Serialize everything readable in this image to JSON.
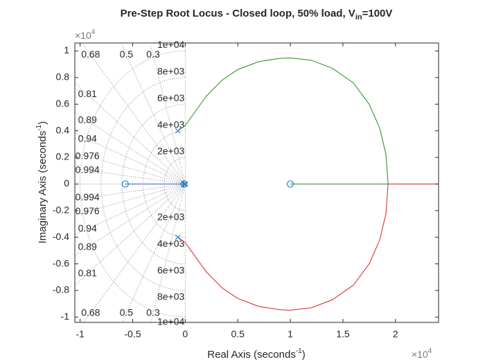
{
  "chart_data": {
    "type": "root-locus",
    "title": {
      "main": "Pre-Step Root Locus - Closed loop, 50% load, V",
      "sub": "in",
      "tail": "=100V"
    },
    "xlabel": {
      "main": "Real Axis (seconds",
      "sup": "-1",
      "tail": ")"
    },
    "ylabel": {
      "main": "Imaginary Axis (seconds",
      "sup": "-1",
      "tail": ")"
    },
    "x_exponent": {
      "base": "×10",
      "power": "4"
    },
    "y_exponent": {
      "base": "×10",
      "power": "4"
    },
    "xlim": [
      -1.05,
      2.41
    ],
    "ylim": [
      -1.04,
      1.06
    ],
    "xticks": [
      -1,
      -0.5,
      0,
      0.5,
      1,
      1.5,
      2
    ],
    "yticks": [
      -1,
      -0.8,
      -0.6,
      -0.4,
      -0.2,
      0,
      0.2,
      0.4,
      0.6,
      0.8,
      1
    ],
    "damping": [
      0.994,
      0.976,
      0.94,
      0.89,
      0.81,
      0.68,
      0.5,
      0.3
    ],
    "frequencies": [
      {
        "value": 0.2,
        "label": "2e+03"
      },
      {
        "value": 0.4,
        "label": "4e+03"
      },
      {
        "value": 0.6,
        "label": "6e+03"
      },
      {
        "value": 0.8,
        "label": "8e+03"
      },
      {
        "value": 1,
        "label": "1e+04"
      }
    ],
    "grid_color": "#8c8c8c",
    "series": [
      {
        "color": "#3a5fcd",
        "x": [
          -0.57,
          0
        ],
        "y": [
          0,
          0
        ]
      },
      {
        "color": "#1f8a1f",
        "x": [
          -0.07,
          0,
          0.1,
          0.2,
          0.35,
          0.5,
          0.7,
          0.9,
          1.0,
          1.2,
          1.4,
          1.6,
          1.75,
          1.85,
          1.91,
          1.93,
          1.0
        ],
        "y": [
          0.4,
          0.44,
          0.55,
          0.66,
          0.78,
          0.86,
          0.92,
          0.945,
          0.948,
          0.93,
          0.87,
          0.76,
          0.6,
          0.42,
          0.22,
          0,
          0
        ]
      },
      {
        "color": "#d92020",
        "x": [
          -0.07,
          0,
          0.1,
          0.2,
          0.35,
          0.5,
          0.7,
          0.9,
          1.0,
          1.2,
          1.4,
          1.6,
          1.75,
          1.85,
          1.91,
          1.93,
          2.41
        ],
        "y": [
          -0.4,
          -0.44,
          -0.55,
          -0.66,
          -0.78,
          -0.86,
          -0.92,
          -0.945,
          -0.948,
          -0.93,
          -0.87,
          -0.76,
          -0.6,
          -0.42,
          -0.22,
          0,
          0
        ]
      }
    ],
    "marker_color": "#0072bd",
    "poles": {
      "x": [
        -0.07,
        -0.07,
        -0.01,
        0
      ],
      "y": [
        0.4,
        -0.4,
        0,
        0
      ]
    },
    "zeros": {
      "x": [
        -0.57,
        -0.01,
        1.0
      ],
      "y": [
        0,
        0,
        0
      ]
    }
  }
}
